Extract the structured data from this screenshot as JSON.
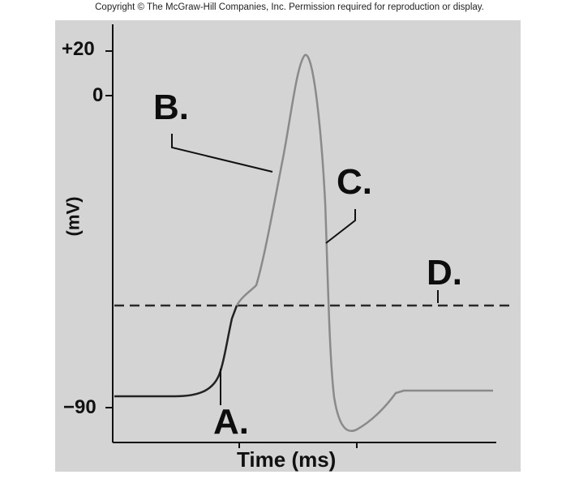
{
  "copyright": "Copyright © The McGraw-Hill Companies, Inc. Permission required for reproduction or display.",
  "y_ticks": {
    "plus20": "+20",
    "zero": "0",
    "minus90": "−90"
  },
  "ylabel": "(mV)",
  "xlabel": "Time (ms)",
  "markers": {
    "a": "A.",
    "b": "B.",
    "c": "C.",
    "d": "D."
  },
  "colors": {
    "panel": "#d4d4d4",
    "curve": "#8a8a8a",
    "curve_dark": "#222222",
    "threshold": "#2a2a2a"
  },
  "chart_data": {
    "type": "line",
    "title": "",
    "xlabel": "Time (ms)",
    "ylabel": "(mV)",
    "yticks": [
      20,
      0,
      -90
    ],
    "threshold_line": "dashed",
    "resting_potential": -90,
    "peak_potential": 20
  }
}
